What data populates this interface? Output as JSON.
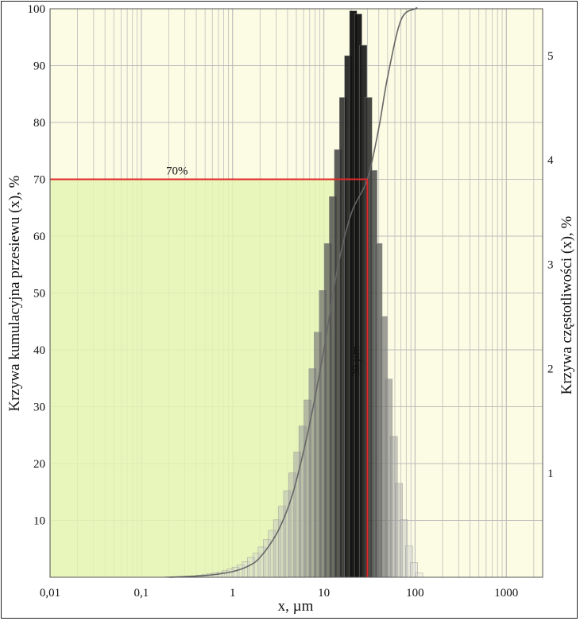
{
  "chart_data": {
    "type": "bar",
    "xlabel": "x, µm",
    "ylabel_left": "Krzywa kumulacyjna przesiewu (x), %",
    "ylabel_right": "Krzywa częstotliwości (x), %",
    "x_scale": "log",
    "xlim": [
      0.01,
      2500
    ],
    "ylim_left": [
      0,
      100
    ],
    "ylim_right": [
      0,
      5.45
    ],
    "x_ticks": [
      0.01,
      0.1,
      1,
      10,
      100,
      1000
    ],
    "x_tick_labels": [
      "0,01",
      "0,1",
      "1",
      "10",
      "100",
      "1000"
    ],
    "y_left_ticks": [
      10,
      20,
      30,
      40,
      50,
      60,
      70,
      80,
      90,
      100
    ],
    "y_left_tick_labels": [
      "10",
      "20",
      "30",
      "40",
      "50",
      "60",
      "70",
      "80",
      "90",
      "100"
    ],
    "y_right_ticks": [
      1,
      2,
      3,
      4,
      5
    ],
    "y_right_tick_labels": [
      "1",
      "2",
      "3",
      "4",
      "5"
    ],
    "grid": true,
    "series": [
      {
        "kind": "histogram",
        "axis": "right",
        "x": [
          0.2,
          0.24,
          0.28,
          0.33,
          0.38,
          0.44,
          0.5,
          0.57,
          0.65,
          0.74,
          0.84,
          0.95,
          1.08,
          1.23,
          1.4,
          1.6,
          1.83,
          2.09,
          2.38,
          2.7,
          3.07,
          3.49,
          3.97,
          4.51,
          5.13,
          5.83,
          6.63,
          7.53,
          8.56,
          9.73,
          11.06,
          12.57,
          14.29,
          16.24,
          18.46,
          20.98,
          23.84,
          27.1,
          30.8,
          35.0,
          39.8,
          45.2,
          51.4,
          58.4,
          66.4,
          75.5,
          85.8,
          97.5,
          110.8
        ],
        "values": [
          0.005,
          0.007,
          0.009,
          0.012,
          0.015,
          0.02,
          0.025,
          0.032,
          0.04,
          0.05,
          0.062,
          0.078,
          0.098,
          0.12,
          0.15,
          0.19,
          0.23,
          0.29,
          0.36,
          0.45,
          0.55,
          0.68,
          0.83,
          1.0,
          1.2,
          1.45,
          1.7,
          2.0,
          2.35,
          2.75,
          3.2,
          3.65,
          4.1,
          4.6,
          5.0,
          5.43,
          5.4,
          5.1,
          4.6,
          3.9,
          3.2,
          2.5,
          1.9,
          1.35,
          0.9,
          0.55,
          0.3,
          0.14,
          0.04
        ]
      },
      {
        "kind": "line",
        "axis": "left",
        "name": "",
        "x": [
          0.2,
          0.5,
          1,
          1.5,
          2,
          3,
          4,
          5,
          7,
          10,
          14,
          20,
          30,
          40,
          50,
          70,
          100,
          105
        ],
        "y": [
          0,
          0.3,
          1,
          2,
          3.5,
          7.5,
          12,
          17,
          27,
          40,
          54,
          64,
          70,
          79,
          88,
          98,
          100,
          100
        ]
      }
    ],
    "reference": {
      "percent_value": 70,
      "size_value": 30,
      "percent_label": "70%",
      "size_label": "30 µm"
    },
    "colors": {
      "panel_background": "#fcfce4",
      "shaded_region": "#e4f5b4",
      "gridline": "#bdbdbd",
      "reference_line": "#e02828",
      "cumulative_line": "#666666",
      "bar_dark": "#111111",
      "bar_light": "#e0e0e0"
    }
  }
}
